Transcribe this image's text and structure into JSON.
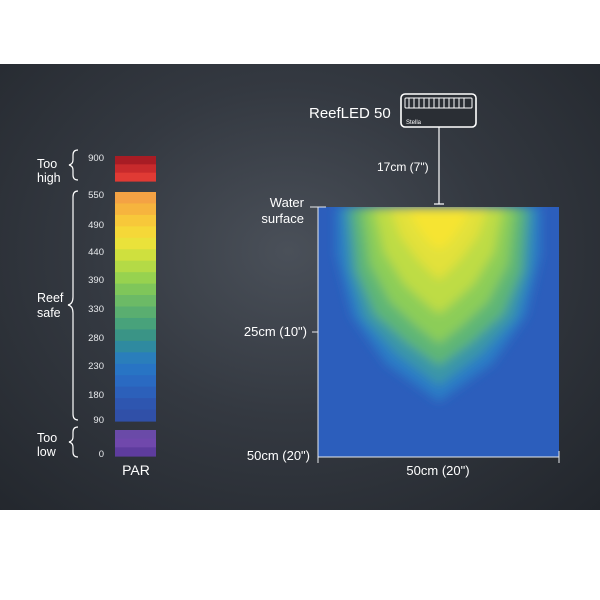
{
  "device": {
    "name": "ReefLED 50",
    "logo_text": "Stella",
    "mount_height": "17cm (7\")"
  },
  "scale": {
    "unit_label": "PAR",
    "too_high": {
      "line1": "Too",
      "line2": "high",
      "tick": "900"
    },
    "reef_safe": {
      "line1": "Reef",
      "line2": "safe",
      "ticks": [
        "550",
        "490",
        "440",
        "390",
        "330",
        "280",
        "230",
        "180",
        "90"
      ]
    },
    "too_low": {
      "line1": "Too",
      "line2": "low",
      "tick": "0"
    },
    "colors": {
      "too_high": [
        "#a81c24",
        "#c82a2c",
        "#e03a34"
      ],
      "reef_safe": [
        "#f4a244",
        "#f6b43e",
        "#f7c83a",
        "#f5d838",
        "#eae23a",
        "#cfe03e",
        "#b4da46",
        "#97d24f",
        "#7fc65a",
        "#6cba66",
        "#5aae70",
        "#48a27b",
        "#3a9486",
        "#2f8aa0",
        "#2a7ebb",
        "#2874c4",
        "#2a6ac2",
        "#2c60ba",
        "#2e56b0",
        "#3050a8"
      ],
      "too_low": [
        "#6a4aa8",
        "#7048ac",
        "#5e3c9e"
      ]
    }
  },
  "tank": {
    "water_surface_line1": "Water",
    "water_surface_line2": "surface",
    "depth_mid": "25cm (10\")",
    "depth_bottom": "50cm (20\")",
    "width_label": "50cm (20\")"
  }
}
